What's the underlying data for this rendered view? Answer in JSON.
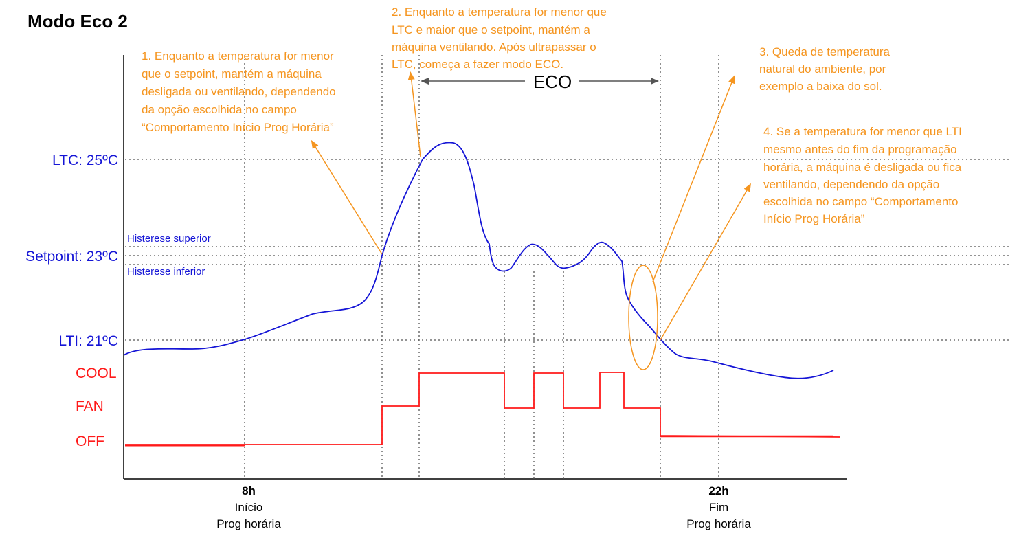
{
  "title": "Modo Eco 2",
  "colors": {
    "temperature_curve": "#1515d6",
    "mode_line": "#ff1a1a",
    "annotation": "#f5951f",
    "axis": "#000000",
    "guide": "#555555"
  },
  "y_labels": {
    "ltc": "LTC: 25ºC",
    "setpoint": "Setpoint: 23ºC",
    "lti": "LTI: 21ºC",
    "hys_upper": "Histerese superior",
    "hys_lower": "Histerese inferior",
    "cool": "COOL",
    "fan": "FAN",
    "off": "OFF"
  },
  "x_labels": {
    "start_time": "8h",
    "start_line1": "Início",
    "start_line2": "Prog horária",
    "end_time": "22h",
    "end_line1": "Fim",
    "end_line2": "Prog horária"
  },
  "eco_label": "ECO",
  "notes": {
    "n1": [
      "1. Enquanto a temperatura for menor",
      "que o setpoint, mantém a máquina",
      "desligada ou ventilando, dependendo",
      "da opção escolhida no campo",
      "“Comportamento Início Prog Horária”"
    ],
    "n2": [
      "2. Enquanto a temperatura for menor que",
      "LTC e maior que o setpoint, mantém a",
      "máquina ventilando. Após ultrapassar o",
      "LTC, começa a fazer modo ECO."
    ],
    "n3": [
      "3. Queda de temperatura",
      "natural do ambiente, por",
      "exemplo a baixa do sol."
    ],
    "n4": [
      "4. Se a temperatura for menor que LTI",
      "mesmo antes do fim da programação",
      "horária, a máquina é desligada ou fica",
      "ventilando, dependendo da opção",
      "escolhida no campo “Comportamento",
      "Início Prog Horária”"
    ]
  }
}
